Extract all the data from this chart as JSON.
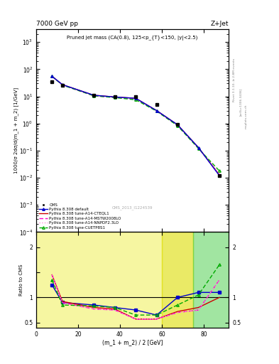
{
  "title_top": "7000 GeV pp",
  "title_right": "Z+Jet",
  "plot_title": "Pruned jet mass (CA(0.8), 125<p_{T}<150, |y|<2.5)",
  "ylabel_main": "1000/σ 2dσ/d(m_1 + m_2) [1/GeV]",
  "ylabel_ratio": "Ratio to CMS",
  "xlabel": "(m_1 + m_2) / 2 [GeV]",
  "rivet_label": "Rivet 3.1.10, ≥ 2.8M events",
  "arxiv_label": "[arXiv:1306.3436]",
  "mcplots_label": "mcplots.cern.ch",
  "cms_label": "CMS_2013_I1224539",
  "cms_x": [
    7.5,
    12.5,
    27.5,
    37.5,
    47.5,
    57.5,
    67.5,
    87.5
  ],
  "cms_y": [
    35.0,
    25.0,
    11.0,
    10.0,
    10.0,
    5.0,
    0.95,
    0.012
  ],
  "pythia_default_x": [
    7.5,
    12.5,
    27.5,
    37.5,
    47.5,
    57.5,
    67.5,
    77.5,
    87.5
  ],
  "pythia_default_y": [
    55.0,
    27.0,
    11.0,
    9.5,
    8.5,
    3.0,
    0.9,
    0.13,
    0.012
  ],
  "pythia_cteql1_x": [
    7.5,
    12.5,
    27.5,
    37.5,
    47.5,
    57.5,
    67.5,
    77.5,
    87.5
  ],
  "pythia_cteql1_y": [
    55.0,
    27.0,
    11.0,
    9.5,
    8.5,
    3.0,
    0.9,
    0.13,
    0.013
  ],
  "pythia_mstw_x": [
    7.5,
    12.5,
    27.5,
    37.5,
    47.5,
    57.5,
    67.5,
    77.5,
    87.5
  ],
  "pythia_mstw_y": [
    55.0,
    26.5,
    10.5,
    9.2,
    8.2,
    2.9,
    0.85,
    0.125,
    0.013
  ],
  "pythia_nnpdf_x": [
    7.5,
    12.5,
    27.5,
    37.5,
    47.5,
    57.5,
    67.5,
    77.5,
    87.5
  ],
  "pythia_nnpdf_y": [
    55.0,
    26.5,
    10.5,
    9.3,
    8.3,
    2.9,
    0.86,
    0.126,
    0.013
  ],
  "pythia_cuetp_x": [
    7.5,
    12.5,
    27.5,
    37.5,
    47.5,
    57.5,
    67.5,
    77.5,
    87.5
  ],
  "pythia_cuetp_y": [
    55.0,
    26.0,
    10.5,
    9.0,
    7.5,
    2.85,
    0.83,
    0.12,
    0.018
  ],
  "ratio_default_x": [
    7.5,
    12.5,
    27.5,
    37.5,
    47.5,
    57.5,
    67.5,
    77.5,
    87.5
  ],
  "ratio_default_y": [
    1.25,
    0.9,
    0.85,
    0.8,
    0.75,
    0.65,
    1.0,
    1.1,
    1.1
  ],
  "ratio_cteql1_x": [
    7.5,
    12.5,
    27.5,
    37.5,
    47.5,
    57.5,
    67.5,
    77.5,
    87.5
  ],
  "ratio_cteql1_y": [
    1.45,
    0.92,
    0.8,
    0.77,
    0.57,
    0.57,
    0.72,
    0.8,
    1.0
  ],
  "ratio_mstw_x": [
    7.5,
    12.5,
    27.5,
    37.5,
    47.5,
    57.5,
    67.5,
    77.5,
    87.5
  ],
  "ratio_mstw_y": [
    1.45,
    0.9,
    0.77,
    0.75,
    0.57,
    0.57,
    0.7,
    0.75,
    1.35
  ],
  "ratio_nnpdf_x": [
    7.5,
    12.5,
    27.5,
    37.5,
    47.5,
    57.5,
    67.5,
    77.5,
    87.5
  ],
  "ratio_nnpdf_y": [
    1.45,
    0.88,
    0.77,
    0.75,
    0.57,
    0.57,
    0.7,
    0.75,
    1.35
  ],
  "ratio_cuetp_x": [
    7.5,
    12.5,
    27.5,
    37.5,
    47.5,
    57.5,
    67.5,
    77.5,
    87.5
  ],
  "ratio_cuetp_y": [
    1.35,
    0.85,
    0.83,
    0.8,
    0.65,
    0.65,
    0.85,
    1.05,
    1.65
  ],
  "color_cms": "#000000",
  "color_default": "#0000cc",
  "color_cteql1": "#cc0000",
  "color_mstw": "#ff00cc",
  "color_nnpdf": "#ff88dd",
  "color_cuetp": "#00aa00",
  "xlim": [
    0,
    92
  ],
  "ylim_main": [
    0.0001,
    3000
  ],
  "ylim_ratio": [
    0.4,
    2.3
  ]
}
